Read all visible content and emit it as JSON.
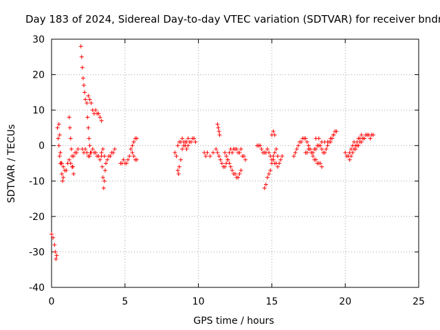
{
  "chart_data": {
    "type": "scatter",
    "title": "Day 183 of 2024, Sidereal Day-to-day VTEC variation (SDTVAR) for receiver bndr",
    "xlabel": "GPS time / hours",
    "ylabel": "SDTVAR / TECUs",
    "xlim": [
      0,
      25
    ],
    "ylim": [
      -40,
      30
    ],
    "x_ticks": [
      0,
      5,
      10,
      15,
      20,
      25
    ],
    "y_ticks": [
      -40,
      -30,
      -20,
      -10,
      0,
      10,
      20,
      30
    ],
    "x_tick_labels": [
      "0",
      "5",
      "10",
      "15",
      "20",
      "25"
    ],
    "y_tick_labels": [
      "-40",
      "-30",
      "-20",
      "-10",
      "0",
      "10",
      "20",
      "30"
    ],
    "grid": true,
    "marker": "+",
    "color": "#ff0000",
    "segments": [
      [
        [
          0.0,
          -25
        ],
        [
          0.1,
          -26
        ],
        [
          0.2,
          -28
        ],
        [
          0.25,
          -30
        ],
        [
          0.3,
          -32
        ],
        [
          0.35,
          -31
        ]
      ],
      [
        [
          0.4,
          5
        ],
        [
          0.45,
          2
        ],
        [
          0.5,
          0
        ],
        [
          0.55,
          -3
        ],
        [
          0.6,
          -5
        ],
        [
          0.7,
          -5
        ],
        [
          0.8,
          -6
        ],
        [
          0.9,
          -7
        ],
        [
          1.0,
          -7
        ],
        [
          1.1,
          -5
        ],
        [
          1.2,
          -4
        ],
        [
          1.3,
          -5
        ],
        [
          1.4,
          -6
        ],
        [
          1.5,
          -3
        ],
        [
          1.6,
          -2
        ],
        [
          1.7,
          -2
        ],
        [
          1.8,
          -1
        ]
      ],
      [
        [
          0.5,
          6
        ],
        [
          0.55,
          3
        ],
        [
          0.6,
          -2
        ],
        [
          0.65,
          -5
        ],
        [
          0.7,
          -8
        ],
        [
          0.75,
          -10
        ],
        [
          0.8,
          -9
        ]
      ],
      [
        [
          1.2,
          8
        ],
        [
          1.25,
          5
        ],
        [
          1.3,
          2
        ],
        [
          1.35,
          -1
        ],
        [
          1.4,
          -3
        ],
        [
          1.45,
          -6
        ],
        [
          1.5,
          -8
        ]
      ],
      [
        [
          2.0,
          28
        ],
        [
          2.05,
          25
        ],
        [
          2.1,
          22
        ],
        [
          2.15,
          19
        ],
        [
          2.2,
          17
        ],
        [
          2.25,
          15
        ],
        [
          2.3,
          13
        ],
        [
          2.4,
          12
        ],
        [
          2.5,
          14
        ],
        [
          2.6,
          13
        ],
        [
          2.7,
          12
        ],
        [
          2.8,
          10
        ],
        [
          2.9,
          9
        ],
        [
          3.0,
          10
        ],
        [
          3.1,
          9
        ],
        [
          3.2,
          9
        ],
        [
          3.3,
          8
        ],
        [
          3.4,
          7
        ]
      ],
      [
        [
          2.1,
          -1
        ],
        [
          2.2,
          -2
        ],
        [
          2.3,
          -1
        ],
        [
          2.4,
          -2
        ],
        [
          2.5,
          -3
        ],
        [
          2.6,
          -3
        ],
        [
          2.7,
          -2
        ],
        [
          2.8,
          -1
        ],
        [
          2.9,
          -2
        ],
        [
          3.0,
          -2
        ],
        [
          3.1,
          -3
        ],
        [
          3.2,
          -3
        ],
        [
          3.3,
          -4
        ],
        [
          3.4,
          -2
        ],
        [
          3.5,
          -1
        ],
        [
          3.6,
          -3
        ],
        [
          3.7,
          -5
        ],
        [
          3.8,
          -4
        ],
        [
          3.9,
          -3
        ],
        [
          4.0,
          -3
        ],
        [
          4.1,
          -2
        ],
        [
          4.2,
          -2
        ],
        [
          4.3,
          -1
        ]
      ],
      [
        [
          2.45,
          8
        ],
        [
          2.5,
          5
        ],
        [
          2.55,
          2
        ],
        [
          2.6,
          0
        ],
        [
          2.65,
          -2
        ]
      ],
      [
        [
          3.4,
          -3
        ],
        [
          3.45,
          -6
        ],
        [
          3.5,
          -9
        ],
        [
          3.55,
          -12
        ],
        [
          3.6,
          -10
        ],
        [
          3.65,
          -7
        ]
      ],
      [
        [
          4.7,
          -5
        ],
        [
          4.8,
          -5
        ],
        [
          4.9,
          -4
        ],
        [
          5.0,
          -5
        ],
        [
          5.1,
          -5
        ],
        [
          5.2,
          -4
        ],
        [
          5.3,
          -3
        ],
        [
          5.4,
          -1
        ],
        [
          5.5,
          0
        ],
        [
          5.6,
          1
        ],
        [
          5.7,
          2
        ],
        [
          5.8,
          2
        ]
      ],
      [
        [
          5.5,
          -2
        ],
        [
          5.6,
          -3
        ],
        [
          5.7,
          -4
        ],
        [
          5.8,
          -4
        ]
      ],
      [
        [
          8.4,
          -2
        ],
        [
          8.5,
          -3
        ],
        [
          8.6,
          -7
        ],
        [
          8.65,
          -8
        ],
        [
          8.7,
          -6
        ],
        [
          8.8,
          -4
        ],
        [
          8.9,
          -1
        ],
        [
          9.0,
          0
        ],
        [
          9.1,
          1
        ],
        [
          9.2,
          1
        ],
        [
          9.3,
          2
        ],
        [
          9.4,
          1
        ],
        [
          9.5,
          1
        ],
        [
          9.6,
          2
        ],
        [
          9.7,
          2
        ],
        [
          9.8,
          1
        ]
      ],
      [
        [
          8.6,
          0
        ],
        [
          8.7,
          1
        ],
        [
          8.8,
          1
        ],
        [
          8.9,
          2
        ],
        [
          9.0,
          1
        ],
        [
          9.1,
          0
        ],
        [
          9.2,
          -1
        ],
        [
          9.3,
          0
        ]
      ],
      [
        [
          10.4,
          -2
        ],
        [
          10.5,
          -3
        ],
        [
          10.6,
          -2
        ],
        [
          10.8,
          -3
        ],
        [
          11.0,
          -2
        ],
        [
          11.2,
          -1
        ],
        [
          11.3,
          -2
        ],
        [
          11.4,
          -3
        ],
        [
          11.5,
          -4
        ],
        [
          11.6,
          -5
        ],
        [
          11.7,
          -6
        ],
        [
          11.8,
          -6
        ],
        [
          11.9,
          -5
        ],
        [
          12.0,
          -4
        ],
        [
          12.1,
          -2
        ],
        [
          12.2,
          -1
        ],
        [
          12.3,
          -2
        ],
        [
          12.4,
          -1
        ],
        [
          12.5,
          -1
        ],
        [
          12.6,
          -1
        ],
        [
          12.7,
          -2
        ],
        [
          12.8,
          -2
        ],
        [
          12.9,
          -1
        ],
        [
          13.0,
          -3
        ],
        [
          13.1,
          -3
        ],
        [
          13.2,
          -4
        ]
      ],
      [
        [
          11.3,
          6
        ],
        [
          11.35,
          5
        ],
        [
          11.4,
          4
        ],
        [
          11.45,
          3
        ]
      ],
      [
        [
          11.8,
          -2
        ],
        [
          11.9,
          -3
        ],
        [
          12.0,
          -4
        ],
        [
          12.1,
          -5
        ],
        [
          12.2,
          -6
        ],
        [
          12.3,
          -7
        ],
        [
          12.4,
          -8
        ],
        [
          12.5,
          -8
        ],
        [
          12.6,
          -9
        ],
        [
          12.7,
          -9
        ],
        [
          12.8,
          -8
        ],
        [
          12.9,
          -7
        ]
      ],
      [
        [
          14.0,
          0
        ],
        [
          14.1,
          0
        ],
        [
          14.2,
          0
        ],
        [
          14.3,
          -1
        ],
        [
          14.4,
          -2
        ],
        [
          14.5,
          -2
        ],
        [
          14.6,
          -2
        ],
        [
          14.7,
          -1
        ],
        [
          14.8,
          -2
        ],
        [
          14.9,
          -3
        ],
        [
          15.0,
          -4
        ],
        [
          15.1,
          -4
        ],
        [
          15.2,
          -5
        ],
        [
          15.3,
          -5
        ],
        [
          15.4,
          -6
        ],
        [
          15.5,
          -5
        ],
        [
          15.6,
          -4
        ],
        [
          15.7,
          -3
        ]
      ],
      [
        [
          14.5,
          -12
        ],
        [
          14.6,
          -11
        ],
        [
          14.7,
          -9
        ],
        [
          14.8,
          -8
        ],
        [
          14.9,
          -7
        ],
        [
          15.0,
          -5
        ],
        [
          15.1,
          -3
        ],
        [
          15.2,
          -2
        ],
        [
          15.3,
          -1
        ],
        [
          15.4,
          -3
        ]
      ],
      [
        [
          15.0,
          3
        ],
        [
          15.1,
          4
        ],
        [
          15.2,
          3
        ]
      ],
      [
        [
          16.5,
          -3
        ],
        [
          16.6,
          -2
        ],
        [
          16.7,
          -1
        ],
        [
          16.8,
          0
        ],
        [
          16.9,
          1
        ],
        [
          17.0,
          1
        ],
        [
          17.1,
          2
        ],
        [
          17.2,
          2
        ],
        [
          17.3,
          2
        ],
        [
          17.4,
          1
        ],
        [
          17.5,
          0
        ],
        [
          17.6,
          -1
        ],
        [
          17.7,
          -2
        ],
        [
          17.8,
          -3
        ],
        [
          17.9,
          -4
        ],
        [
          18.0,
          -4
        ],
        [
          18.1,
          -5
        ],
        [
          18.2,
          -5
        ],
        [
          18.3,
          -5
        ],
        [
          18.4,
          -6
        ]
      ],
      [
        [
          17.3,
          -2
        ],
        [
          17.4,
          -2
        ],
        [
          17.5,
          -1
        ],
        [
          17.6,
          -1
        ],
        [
          17.7,
          -2
        ],
        [
          17.8,
          -2
        ],
        [
          17.9,
          -1
        ],
        [
          18.0,
          -1
        ],
        [
          18.1,
          0
        ],
        [
          18.2,
          0
        ],
        [
          18.3,
          0
        ],
        [
          18.4,
          -1
        ],
        [
          18.5,
          -2
        ],
        [
          18.6,
          -2
        ],
        [
          18.7,
          -1
        ],
        [
          18.8,
          0
        ],
        [
          18.9,
          1
        ],
        [
          19.0,
          2
        ],
        [
          19.1,
          2
        ],
        [
          19.2,
          3
        ],
        [
          19.3,
          4
        ],
        [
          19.4,
          4
        ]
      ],
      [
        [
          18.0,
          2
        ],
        [
          18.2,
          2
        ],
        [
          18.4,
          1
        ],
        [
          18.6,
          1
        ],
        [
          18.8,
          1
        ],
        [
          19.0,
          1
        ],
        [
          19.2,
          3
        ]
      ],
      [
        [
          20.0,
          -2
        ],
        [
          20.1,
          -3
        ],
        [
          20.2,
          -3
        ],
        [
          20.3,
          -4
        ],
        [
          20.4,
          -3
        ],
        [
          20.5,
          -2
        ],
        [
          20.6,
          -1
        ],
        [
          20.7,
          -1
        ],
        [
          20.8,
          0
        ],
        [
          20.9,
          0
        ],
        [
          21.0,
          1
        ],
        [
          21.1,
          1
        ],
        [
          21.2,
          2
        ],
        [
          21.3,
          2
        ],
        [
          21.4,
          3
        ],
        [
          21.5,
          3
        ],
        [
          21.6,
          3
        ],
        [
          21.7,
          2
        ],
        [
          21.8,
          3
        ],
        [
          21.9,
          3
        ]
      ],
      [
        [
          20.3,
          -2
        ],
        [
          20.4,
          -1
        ],
        [
          20.5,
          0
        ],
        [
          20.6,
          1
        ],
        [
          20.7,
          0
        ],
        [
          20.8,
          1
        ],
        [
          20.9,
          2
        ],
        [
          21.0,
          2
        ],
        [
          21.1,
          3
        ],
        [
          21.2,
          2
        ]
      ]
    ]
  }
}
